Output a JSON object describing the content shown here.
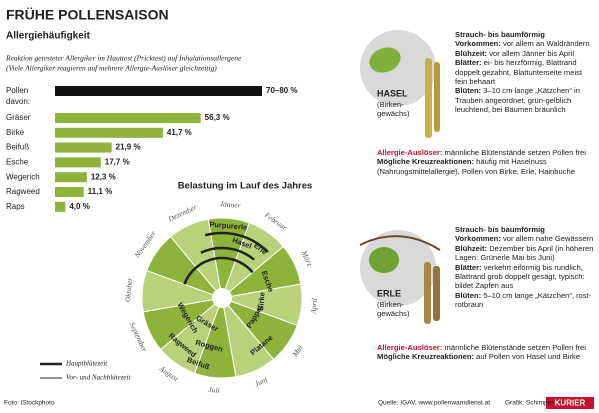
{
  "header": {
    "title": "FRÜHE POLLENSAISON",
    "subtitle": "Allergiehäufigkeit"
  },
  "chart_data": {
    "type": "bar",
    "note": [
      "Reaktion getesteter Allergiker im Hauttest (Pricktest) auf Inhalationsallergene",
      "(Viele Allergiker reagieren auf mehrere Allergie-Auslöser gleichzeitig)"
    ],
    "total": {
      "category": "Pollen",
      "low": 70,
      "high": 80,
      "value_label": "70–80 %"
    },
    "group_label": "davon:",
    "categories": [
      "Gräser",
      "Birke",
      "Beifuß",
      "Esche",
      "Wegerich",
      "Ragweed",
      "Raps"
    ],
    "values": [
      56.3,
      41.7,
      21.9,
      17.7,
      12.3,
      11.1,
      4.0
    ],
    "value_labels": [
      "56,3 %",
      "41,7 %",
      "21,9 %",
      "17,7 %",
      "12,3 %",
      "11,1 %",
      "4,0 %"
    ],
    "color": "#8db33a",
    "total_color": "#111111"
  },
  "wheel": {
    "title": "Belastung im Lauf des Jahres",
    "months": [
      "Jänner",
      "Februar",
      "März",
      "April",
      "Mai",
      "Juni",
      "Juli",
      "August",
      "September",
      "Oktober",
      "November",
      "Dezember"
    ],
    "plants": [
      "Purpurerle",
      "Hasel",
      "Erle",
      "Esche",
      "Birke",
      "Pappel",
      "Platane",
      "Gräser",
      "Roggen",
      "Wegerich",
      "Ragweed",
      "Beifuß"
    ],
    "legend": [
      "Hauptblütezeit",
      "Vor- und Nachblütezeit"
    ]
  },
  "cards": [
    {
      "name": "HASEL",
      "family": "(Birken-gewächs)",
      "lead": "Strauch- bis baumförmig",
      "rows": [
        {
          "label": "Vorkommen:",
          "text": "vor allem an Waldrändern"
        },
        {
          "label": "Blühzeit:",
          "text": "vor allem Jänner bis April"
        },
        {
          "label": "Blätter:",
          "text": "ei- bis herzförmig, Blattrand doppelt gezahnt, Blattunterseite meist fein behaart"
        },
        {
          "label": "Blüten:",
          "text": "3–10 cm lange „Kätzchen“ in Trauben angeordnet; grün-gelblich leuchtend, bei Bäumen bräunlich"
        }
      ],
      "allergy": {
        "label": "Allergie-Auslöser:",
        "text": "männliche Blütenstände setzen Pollen frei"
      },
      "cross": {
        "label": "Mögliche Kreuzreaktionen:",
        "text": "häufig mit Haselnuss (Nahrungsmittelallergie), Pollen von Birke, Erle, Hainbuche"
      }
    },
    {
      "name": "ERLE",
      "family": "(Birken-gewächs)",
      "lead": "Strauch- bis baumförmig",
      "rows": [
        {
          "label": "Vorkommen:",
          "text": "vor allem nahe Gewässern"
        },
        {
          "label": "Blühzeit:",
          "text": "Dezember bis April (in höheren Lagen: Grünerle Mai bis Juni)"
        },
        {
          "label": "Blätter:",
          "text": "verkehrt eiförmig bis rundlich, Blattrand grob doppelt gesägt, typisch: bildet Zapfen aus"
        },
        {
          "label": "Blüten:",
          "text": "5–10 cm lange „Kätzchen“, rost-rotbraun"
        }
      ],
      "allergy": {
        "label": "Allergie-Auslöser:",
        "text": "männliche Blütenstände setzen Pollen frei"
      },
      "cross": {
        "label": "Mögliche Kreuzreaktionen:",
        "text": "auf Pollen von Hasel und Birke"
      }
    }
  ],
  "footer": {
    "photo": "Foto: iStockphoto",
    "source": "Quelle: IGAV, www.pollenwarndienst.at",
    "graphic": "Grafik: Schimper",
    "brand": "KURIER"
  }
}
